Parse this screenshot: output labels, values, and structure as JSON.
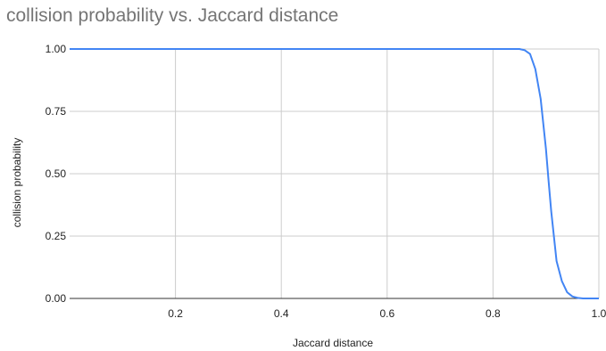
{
  "chart_data": {
    "type": "line",
    "title": "collision probability vs. Jaccard distance",
    "xlabel": "Jaccard distance",
    "ylabel": "collision probability",
    "xlim": [
      0.0,
      1.0
    ],
    "ylim": [
      0.0,
      1.0
    ],
    "x_ticks": [
      "0.2",
      "0.4",
      "0.6",
      "0.8",
      "1.0"
    ],
    "y_ticks": [
      "0.00",
      "0.25",
      "0.50",
      "0.75",
      "1.00"
    ],
    "grid": true,
    "legend": "none",
    "series": [
      {
        "color": "#4285f4",
        "x": [
          0.0,
          0.1,
          0.2,
          0.3,
          0.4,
          0.5,
          0.6,
          0.7,
          0.8,
          0.85,
          0.86,
          0.87,
          0.88,
          0.89,
          0.9,
          0.905,
          0.91,
          0.92,
          0.93,
          0.94,
          0.95,
          0.96,
          0.97,
          0.98,
          1.0
        ],
        "y": [
          1.0,
          1.0,
          1.0,
          1.0,
          1.0,
          1.0,
          1.0,
          1.0,
          1.0,
          1.0,
          0.995,
          0.98,
          0.92,
          0.8,
          0.6,
          0.47,
          0.35,
          0.15,
          0.07,
          0.025,
          0.008,
          0.002,
          0.0,
          0.0,
          0.0
        ]
      }
    ]
  }
}
